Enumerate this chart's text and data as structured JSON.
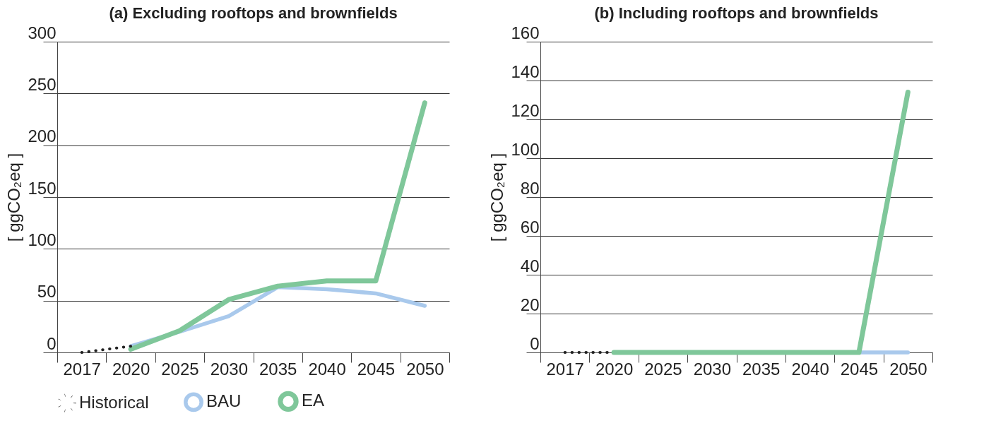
{
  "chart_data": [
    {
      "type": "line",
      "title": "(a) Excluding rooftops and brownfields",
      "ylabel": "[ ggCO₂eq ]",
      "categories": [
        "2017",
        "2020",
        "2025",
        "2030",
        "2035",
        "2040",
        "2045",
        "2050"
      ],
      "series": [
        {
          "name": "Historical",
          "color": "#222222",
          "line_style": "dotted",
          "values": [
            0,
            6,
            null,
            null,
            null,
            null,
            null,
            null
          ]
        },
        {
          "name": "BAU",
          "color": "#a9c9ec",
          "values": [
            null,
            6,
            20,
            35,
            63,
            61,
            57,
            45
          ]
        },
        {
          "name": "EA",
          "color": "#7fc79a",
          "values": [
            null,
            3,
            21,
            51,
            64,
            69,
            69,
            241
          ]
        }
      ],
      "ylim": [
        0,
        300
      ],
      "yticks": [
        0,
        50,
        100,
        150,
        200,
        250,
        300
      ],
      "grid": "y",
      "legend": "bottom"
    },
    {
      "type": "line",
      "title": "(b) Including rooftops and brownfields",
      "ylabel": "[ ggCO₂eq ]",
      "categories": [
        "2017",
        "2020",
        "2025",
        "2030",
        "2035",
        "2040",
        "2045",
        "2050"
      ],
      "series": [
        {
          "name": "Historical",
          "color": "#222222",
          "line_style": "dotted",
          "values": [
            0,
            0,
            null,
            null,
            null,
            null,
            null,
            null
          ]
        },
        {
          "name": "BAU",
          "color": "#a9c9ec",
          "values": [
            null,
            null,
            null,
            null,
            null,
            null,
            0,
            0
          ]
        },
        {
          "name": "EA",
          "color": "#7fc79a",
          "values": [
            null,
            0,
            0,
            0,
            0,
            0,
            0,
            134
          ]
        }
      ],
      "ylim": [
        0,
        160
      ],
      "yticks": [
        0,
        20,
        40,
        60,
        80,
        100,
        120,
        140,
        160
      ],
      "grid": "y",
      "legend": "bottom"
    }
  ]
}
